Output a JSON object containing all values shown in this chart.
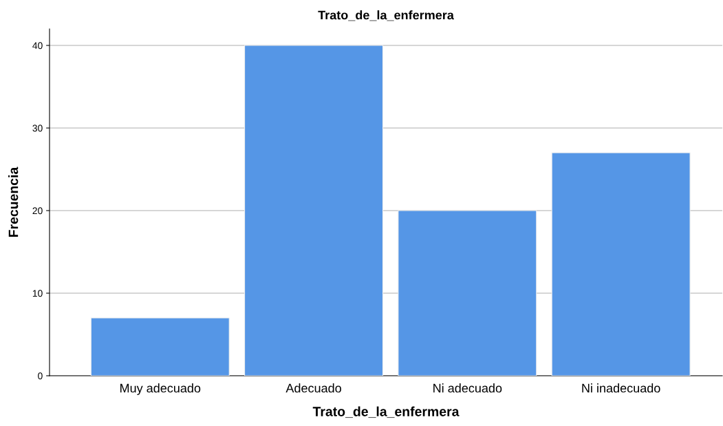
{
  "chart_data": {
    "type": "bar",
    "title": "Trato_de_la_enfermera",
    "xlabel": "Trato_de_la_enfermera",
    "ylabel": "Frecuencia",
    "categories": [
      "Muy adecuado",
      "Adecuado",
      "Ni adecuado",
      "Ni inadecuado"
    ],
    "values": [
      7,
      40,
      20,
      27
    ],
    "color": "#5596e6",
    "ylim": [
      0,
      42
    ],
    "yticks": [
      0,
      10,
      20,
      30,
      40
    ],
    "grid": "y"
  }
}
